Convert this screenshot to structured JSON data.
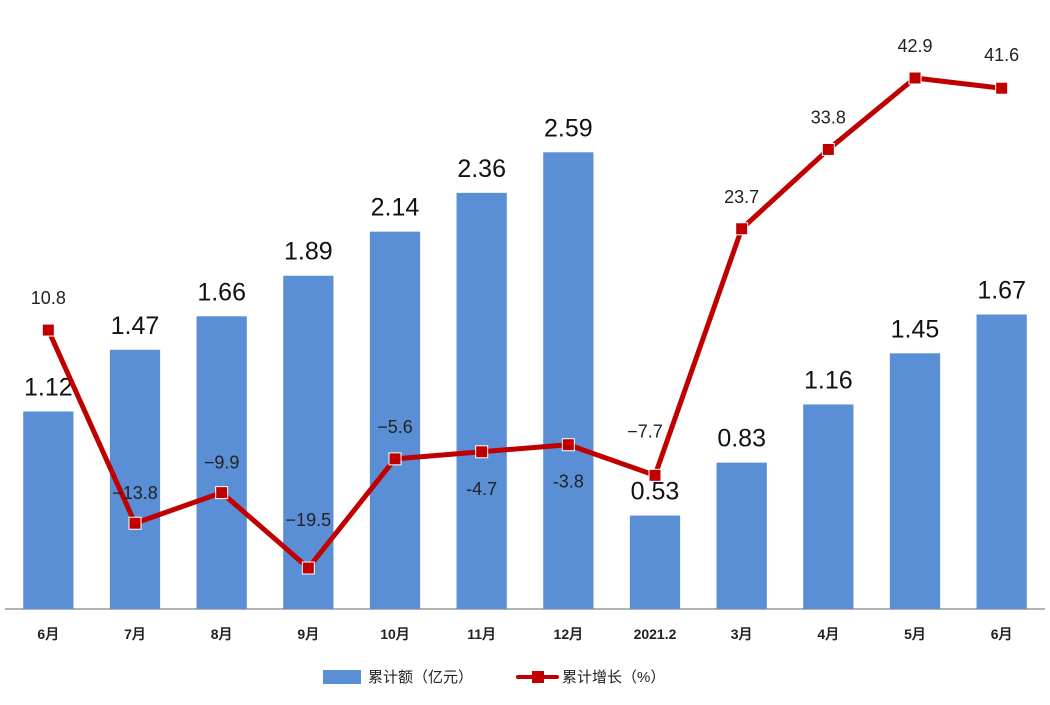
{
  "chart_data": {
    "type": "bar",
    "categories": [
      "6月",
      "7月",
      "8月",
      "9月",
      "10月",
      "11月",
      "12月",
      "2021.2",
      "3月",
      "4月",
      "5月",
      "6月"
    ],
    "series": [
      {
        "name": "累计额（亿元）",
        "type": "bar",
        "values": [
          1.12,
          1.47,
          1.66,
          1.89,
          2.14,
          2.36,
          2.59,
          0.53,
          0.83,
          1.16,
          1.45,
          1.67
        ],
        "labels": [
          "1.12",
          "1.47",
          "1.66",
          "1.89",
          "2.14",
          "2.36",
          "2.59",
          "0.53",
          "0.83",
          "1.16",
          "1.45",
          "1.67"
        ]
      },
      {
        "name": "累计增长（%）",
        "type": "line",
        "values": [
          10.8,
          -13.8,
          -9.9,
          -19.5,
          -5.6,
          -4.7,
          -3.8,
          -7.7,
          23.7,
          33.8,
          42.9,
          41.6
        ],
        "labels": [
          "10.8",
          "−13.8",
          "−9.9",
          "−19.5",
          "−5.6",
          "-4.7",
          "-3.8",
          "−7.7",
          "23.7",
          "33.8",
          "42.9",
          "41.6"
        ]
      }
    ],
    "ylim_bar": [
      0,
      3.0
    ],
    "ylim_line": [
      -30,
      50
    ],
    "grid": false,
    "legend_position": "bottom",
    "colors": {
      "bar": "#5A8FD6",
      "line": "#C00000",
      "marker": "#C00000",
      "axis": "#666666"
    }
  }
}
